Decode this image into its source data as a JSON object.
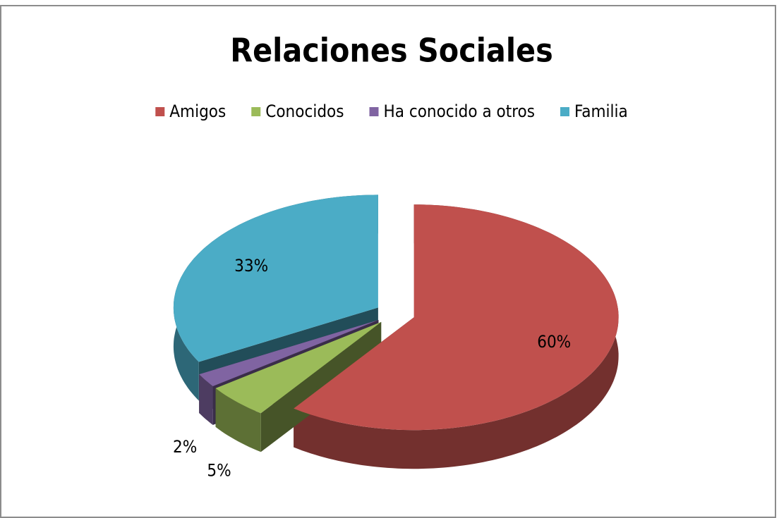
{
  "chart_data": {
    "type": "pie",
    "title": "Relaciones Sociales",
    "categories": [
      "Amigos",
      "Conocidos",
      "Ha conocido a otros",
      "Familia"
    ],
    "values": [
      60,
      5,
      2,
      33
    ],
    "value_labels": [
      "60%",
      "5%",
      "2%",
      "33%"
    ],
    "colors": [
      "#c0504d",
      "#9bbb59",
      "#8064a2",
      "#4bacc6"
    ],
    "legend": "top"
  }
}
